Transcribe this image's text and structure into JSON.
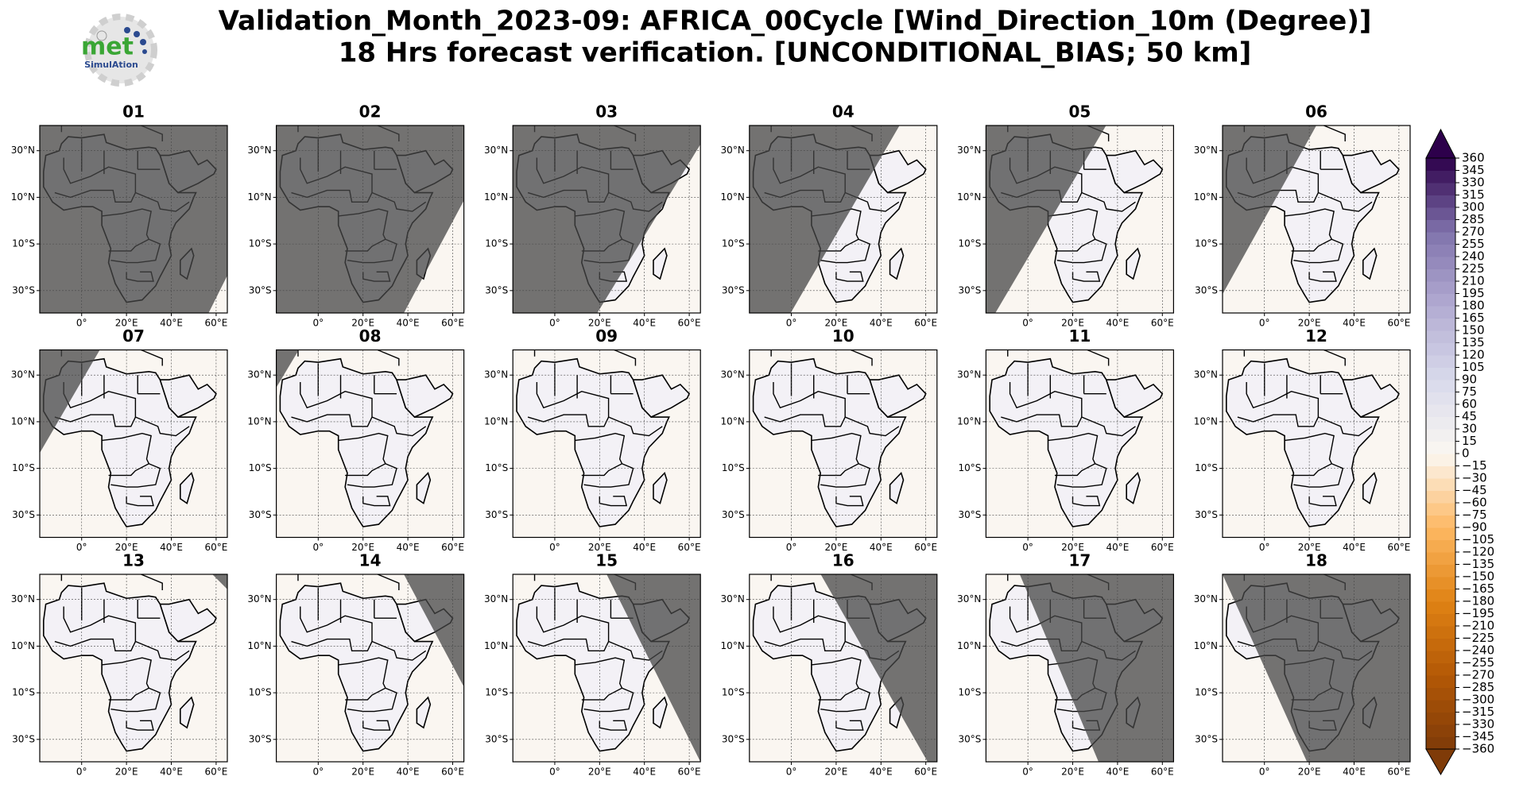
{
  "header": {
    "title_line1": "Validation_Month_2023-09: AFRICA_00Cycle [Wind_Direction_10m (Degree)]",
    "title_line2": "18 Hrs forecast verification. [UNCONDITIONAL_BIAS; 50 km]"
  },
  "logo": {
    "text": "met",
    "subtext": "SimulAtion"
  },
  "panels": [
    "01",
    "02",
    "03",
    "04",
    "05",
    "06",
    "07",
    "08",
    "09",
    "10",
    "11",
    "12",
    "13",
    "14",
    "15",
    "16",
    "17",
    "18"
  ],
  "map": {
    "xlim": [
      -18.7,
      65
    ],
    "ylim": [
      -39.6,
      40.8
    ],
    "lat_ticks": [
      {
        "value": 30,
        "label": "30°N"
      },
      {
        "value": 10,
        "label": "10°N"
      },
      {
        "value": -10,
        "label": "10°S"
      },
      {
        "value": -30,
        "label": "30°S"
      }
    ],
    "lon_ticks": [
      {
        "value": 0,
        "label": "0°"
      },
      {
        "value": 20,
        "label": "20°E"
      },
      {
        "value": 40,
        "label": "40°E"
      },
      {
        "value": 60,
        "label": "60°E"
      }
    ]
  },
  "colorbar": {
    "lim": [
      -360,
      360
    ],
    "ticks": [
      {
        "value": -360,
        "label": "−360"
      },
      {
        "value": -345,
        "label": "−345"
      },
      {
        "value": -330,
        "label": "−330"
      },
      {
        "value": -315,
        "label": "−315"
      },
      {
        "value": -300,
        "label": "−300"
      },
      {
        "value": -285,
        "label": "−285"
      },
      {
        "value": -270,
        "label": "−270"
      },
      {
        "value": -255,
        "label": "−255"
      },
      {
        "value": -240,
        "label": "−240"
      },
      {
        "value": -225,
        "label": "−225"
      },
      {
        "value": -210,
        "label": "−210"
      },
      {
        "value": -195,
        "label": "−195"
      },
      {
        "value": -180,
        "label": "−180"
      },
      {
        "value": -165,
        "label": "−165"
      },
      {
        "value": -150,
        "label": "−150"
      },
      {
        "value": -135,
        "label": "−135"
      },
      {
        "value": -120,
        "label": "−120"
      },
      {
        "value": -105,
        "label": "−105"
      },
      {
        "value": -90,
        "label": "−90"
      },
      {
        "value": -75,
        "label": "−75"
      },
      {
        "value": -60,
        "label": "−60"
      },
      {
        "value": -45,
        "label": "−45"
      },
      {
        "value": -30,
        "label": "−30"
      },
      {
        "value": -15,
        "label": "−15"
      },
      0,
      15,
      30,
      45,
      60,
      75,
      90,
      105,
      120,
      135,
      150,
      165,
      180,
      195,
      210,
      225,
      240,
      255,
      270,
      285,
      300,
      315,
      330,
      345,
      360
    ]
  }
}
